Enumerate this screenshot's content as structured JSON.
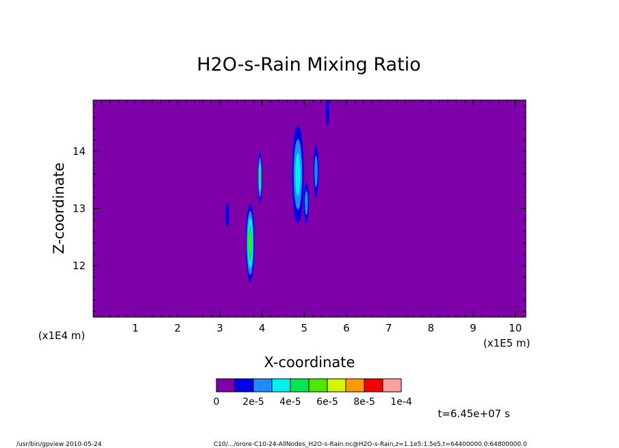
{
  "chart_data": {
    "type": "heatmap",
    "title": "H2O-s-Rain Mixing Ratio",
    "xlabel": "X-coordinate",
    "ylabel": "Z-coordinate",
    "x_unit_label": "(x1E5 m)",
    "y_unit_label": "(x1E4 m)",
    "x_tick_labels": [
      "1",
      "2",
      "3",
      "4",
      "5",
      "6",
      "7",
      "8",
      "9",
      "10"
    ],
    "y_tick_labels": [
      "12",
      "13",
      "14"
    ],
    "xlim": [
      0,
      10.25
    ],
    "ylim": [
      11.1,
      14.9
    ],
    "x_ticks": [
      1,
      2,
      3,
      4,
      5,
      6,
      7,
      8,
      9,
      10
    ],
    "y_ticks": [
      12,
      13,
      14
    ],
    "background_color": "#7d00a8",
    "levels": [
      0,
      1e-05,
      2e-05,
      3e-05,
      4e-05,
      5e-05,
      6e-05,
      7e-05,
      8e-05,
      9e-05,
      0.0001
    ],
    "level_colors": [
      "#7d00a8",
      "#0000e6",
      "#1e8cff",
      "#00f0f0",
      "#00e650",
      "#50e600",
      "#d2f500",
      "#ff9b00",
      "#f50000",
      "#ffa0a0"
    ],
    "colorbar_labels": [
      "0",
      "2e-5",
      "4e-5",
      "6e-5",
      "8e-5",
      "1e-4"
    ],
    "time_label": "t=6.45e+07 s",
    "features": [
      {
        "x": 3.18,
        "z": 12.9,
        "x_halfwidth": 0.04,
        "z_halfwidth": 0.22,
        "max_level": 1
      },
      {
        "x": 3.72,
        "z": 12.4,
        "x_halfwidth": 0.1,
        "z_halfwidth": 0.68,
        "max_level": 5
      },
      {
        "x": 3.95,
        "z": 13.55,
        "x_halfwidth": 0.05,
        "z_halfwidth": 0.45,
        "max_level": 4
      },
      {
        "x": 4.85,
        "z": 13.6,
        "x_halfwidth": 0.14,
        "z_halfwidth": 0.85,
        "max_level": 3
      },
      {
        "x": 5.05,
        "z": 13.1,
        "x_halfwidth": 0.06,
        "z_halfwidth": 0.35,
        "max_level": 2
      },
      {
        "x": 5.28,
        "z": 13.65,
        "x_halfwidth": 0.06,
        "z_halfwidth": 0.45,
        "max_level": 2
      },
      {
        "x": 5.55,
        "z": 14.7,
        "x_halfwidth": 0.04,
        "z_halfwidth": 0.25,
        "max_level": 1
      }
    ]
  },
  "footer": {
    "left": "/usr/bin/gpview  2010-05-24",
    "right": "C10/.../orore-C10-24-AllNodes_H2O-s-Rain.nc@H2O-s-Rain,z=1.1e5:1.5e5,t=64400000.0:64800000.0"
  }
}
